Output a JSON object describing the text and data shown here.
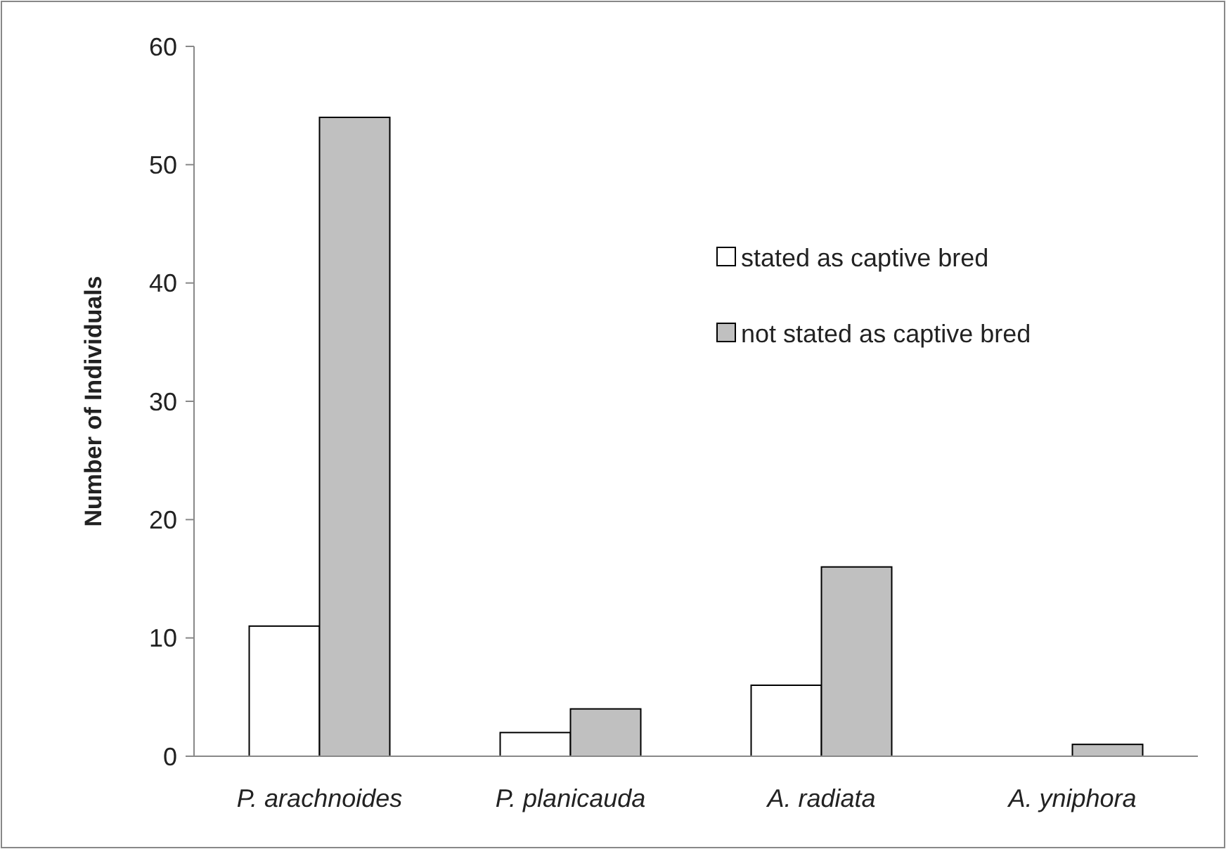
{
  "chart_data": {
    "type": "bar",
    "ylabel": "Number of Individuals",
    "categories": [
      "P. arachnoides",
      "P. planicauda",
      "A. radiata",
      "A. yniphora"
    ],
    "series": [
      {
        "name": "stated as captive bred",
        "color": "#ffffff",
        "values": [
          11,
          2,
          6,
          0
        ]
      },
      {
        "name": "not stated as captive bred",
        "color": "#c0c0c0",
        "values": [
          54,
          4,
          16,
          1
        ]
      }
    ],
    "ylim": [
      0,
      60
    ],
    "yticks": [
      0,
      10,
      20,
      30,
      40,
      50,
      60
    ],
    "grid": false,
    "legend": "top right"
  }
}
